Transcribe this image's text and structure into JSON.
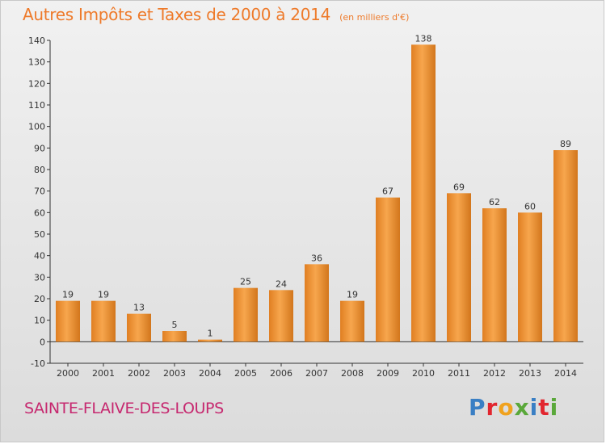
{
  "header": {
    "title": "Autres Impôts et Taxes de 2000 à 2014",
    "subtitle": "(en milliers d'€)"
  },
  "footer": {
    "town": "SAINTE-FLAIVE-DES-LOUPS",
    "brand_letters": [
      "P",
      "r",
      "o",
      "x",
      "i",
      "t",
      "i"
    ],
    "brand_colors": [
      "#3a7fc4",
      "#e2262f",
      "#f0a21e",
      "#5aa83a",
      "#3a7fc4",
      "#e2262f",
      "#5aa83a"
    ]
  },
  "chart_data": {
    "type": "bar",
    "title": "Autres Impôts et Taxes de 2000 à 2014",
    "categories": [
      "2000",
      "2001",
      "2002",
      "2003",
      "2004",
      "2005",
      "2006",
      "2007",
      "2008",
      "2009",
      "2010",
      "2011",
      "2012",
      "2013",
      "2014"
    ],
    "values": [
      19,
      19,
      13,
      5,
      1,
      25,
      24,
      36,
      19,
      67,
      138,
      69,
      62,
      60,
      89
    ],
    "ylim": [
      -10,
      140
    ],
    "yticks": [
      -10,
      0,
      10,
      20,
      30,
      40,
      50,
      60,
      70,
      80,
      90,
      100,
      110,
      120,
      130,
      140
    ],
    "grid": false,
    "bar_color": "#f39a3f",
    "bar_color_dark": "#d2761c"
  }
}
